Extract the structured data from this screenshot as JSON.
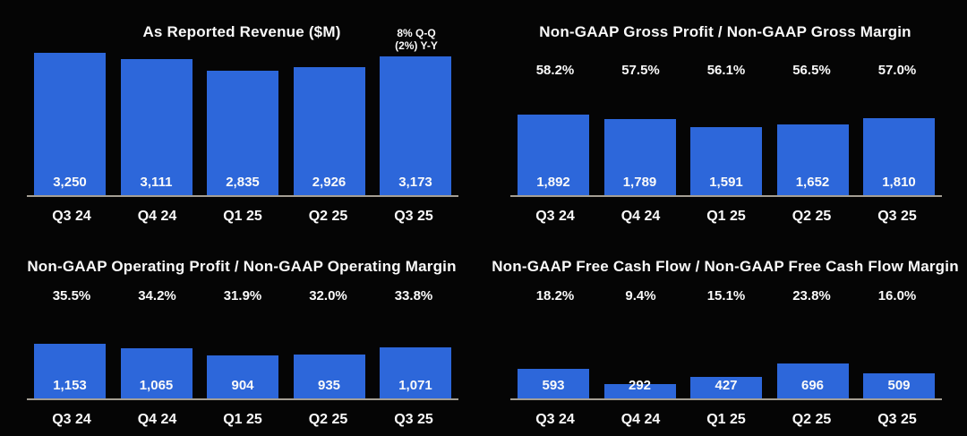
{
  "colors": {
    "background": "#050505",
    "bar": "#2d67da",
    "text": "#fafafa",
    "baseline": "#a49e93"
  },
  "chart_data": [
    {
      "type": "bar",
      "title": "As Reported Revenue ($M)",
      "annotation": [
        "8% Q-Q",
        "(2%) Y-Y"
      ],
      "categories": [
        "Q3 24",
        "Q4 24",
        "Q1 25",
        "Q2 25",
        "Q3 25"
      ],
      "series": [
        {
          "name": "As Reported Revenue ($M)",
          "values": [
            3250,
            3111,
            2835,
            2926,
            3173
          ],
          "labels": [
            "3,250",
            "3,111",
            "2,835",
            "2,926",
            "3,173"
          ]
        }
      ],
      "ylim": [
        0,
        3500
      ],
      "grid": false,
      "legend": false
    },
    {
      "type": "bar",
      "title": "Non-GAAP Gross Profit / Non-GAAP Gross Margin",
      "categories": [
        "Q3 24",
        "Q4 24",
        "Q1 25",
        "Q2 25",
        "Q3 25"
      ],
      "series": [
        {
          "name": "Non-GAAP Gross Profit ($M)",
          "values": [
            1892,
            1789,
            1591,
            1652,
            1810
          ],
          "labels": [
            "1,892",
            "1,789",
            "1,591",
            "1,652",
            "1,810"
          ]
        },
        {
          "name": "Non-GAAP Gross Margin (%)",
          "values": [
            58.2,
            57.5,
            56.1,
            56.5,
            57.0
          ],
          "labels": [
            "58.2%",
            "57.5%",
            "56.1%",
            "56.5%",
            "57.0%"
          ],
          "display": "labels-above-bars"
        }
      ],
      "ylim": [
        0,
        2000
      ],
      "grid": false,
      "legend": false
    },
    {
      "type": "bar",
      "title": "Non-GAAP Operating Profit / Non-GAAP Operating Margin",
      "categories": [
        "Q3 24",
        "Q4 24",
        "Q1 25",
        "Q2 25",
        "Q3 25"
      ],
      "series": [
        {
          "name": "Non-GAAP Operating Profit ($M)",
          "values": [
            1153,
            1065,
            904,
            935,
            1071
          ],
          "labels": [
            "1,153",
            "1,065",
            "904",
            "935",
            "1,071"
          ]
        },
        {
          "name": "Non-GAAP Operating Margin (%)",
          "values": [
            35.5,
            34.2,
            31.9,
            32.0,
            33.8
          ],
          "labels": [
            "35.5%",
            "34.2%",
            "31.9%",
            "32.0%",
            "33.8%"
          ],
          "display": "labels-above-bars"
        }
      ],
      "ylim": [
        0,
        1250
      ],
      "grid": false,
      "legend": false
    },
    {
      "type": "bar",
      "title": "Non-GAAP Free Cash Flow / Non-GAAP Free Cash Flow Margin",
      "categories": [
        "Q3 24",
        "Q4 24",
        "Q1 25",
        "Q2 25",
        "Q3 25"
      ],
      "series": [
        {
          "name": "Non-GAAP Free Cash Flow ($M)",
          "values": [
            593,
            292,
            427,
            696,
            509
          ],
          "labels": [
            "593",
            "292",
            "427",
            "696",
            "509"
          ]
        },
        {
          "name": "Non-GAAP Free Cash Flow Margin (%)",
          "values": [
            18.2,
            9.4,
            15.1,
            23.8,
            16.0
          ],
          "labels": [
            "18.2%",
            "9.4%",
            "15.1%",
            "23.8%",
            "16.0%"
          ],
          "display": "labels-above-bars"
        }
      ],
      "ylim": [
        0,
        750
      ],
      "grid": false,
      "legend": false
    }
  ]
}
